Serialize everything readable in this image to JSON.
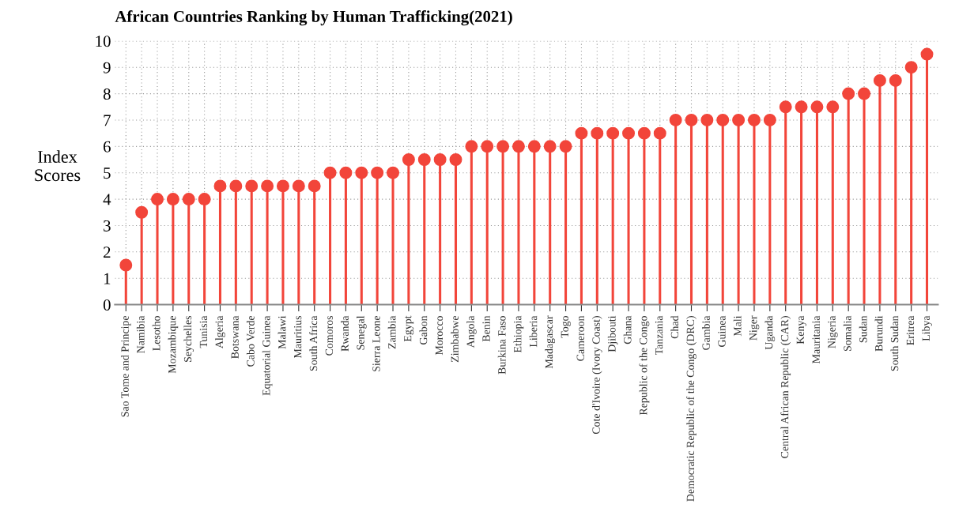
{
  "chart_data": {
    "type": "lollipop",
    "title": "African Countries Ranking by Human Trafficking(2021)",
    "ylabel": "Index\nScores",
    "categories": [
      "Sao Tome and Principe",
      "Namibia",
      "Lesotho",
      "Mozambique",
      "Seychelles",
      "Tunisia",
      "Algeria",
      "Botswana",
      "Cabo Verde",
      "Equatorial Guinea",
      "Malawi",
      "Mauritius",
      "South Africa",
      "Comoros",
      "Rwanda",
      "Senegal",
      "Sierra Leone",
      "Zambia",
      "Egypt",
      "Gabon",
      "Morocco",
      "Zimbabwe",
      "Angola",
      "Benin",
      "Burkina Faso",
      "Ethiopia",
      "Liberia",
      "Madagascar",
      "Togo",
      "Cameroon",
      "Cote d'Ivoire (Ivory Coast)",
      "Djibouti",
      "Ghana",
      "Republic of the Congo",
      "Tanzania",
      "Chad",
      "Democratic Republic of the Congo (DRC)",
      "Gambia",
      "Guinea",
      "Mali",
      "Niger",
      "Uganda",
      "Central African Republic (CAR)",
      "Kenya",
      "Mauritania",
      "Nigeria",
      "Somalia",
      "Sudan",
      "Burundi",
      "South Sudan",
      "Eritrea",
      "Libya"
    ],
    "values": [
      1.5,
      3.5,
      4,
      4,
      4,
      4,
      4.5,
      4.5,
      4.5,
      4.5,
      4.5,
      4.5,
      4.5,
      5,
      5,
      5,
      5,
      5,
      5.5,
      5.5,
      5.5,
      5.5,
      6,
      6,
      6,
      6,
      6,
      6,
      6,
      6.5,
      6.5,
      6.5,
      6.5,
      6.5,
      6.5,
      7,
      7,
      7,
      7,
      7,
      7,
      7,
      7.5,
      7.5,
      7.5,
      7.5,
      8,
      8,
      8.5,
      8.5,
      9,
      9.5
    ],
    "color": "#f2453a",
    "marker": "circle",
    "ylim": [
      0,
      10
    ],
    "yticks": [
      0,
      1,
      2,
      3,
      4,
      5,
      6,
      7,
      8,
      9,
      10
    ],
    "grid": true
  }
}
